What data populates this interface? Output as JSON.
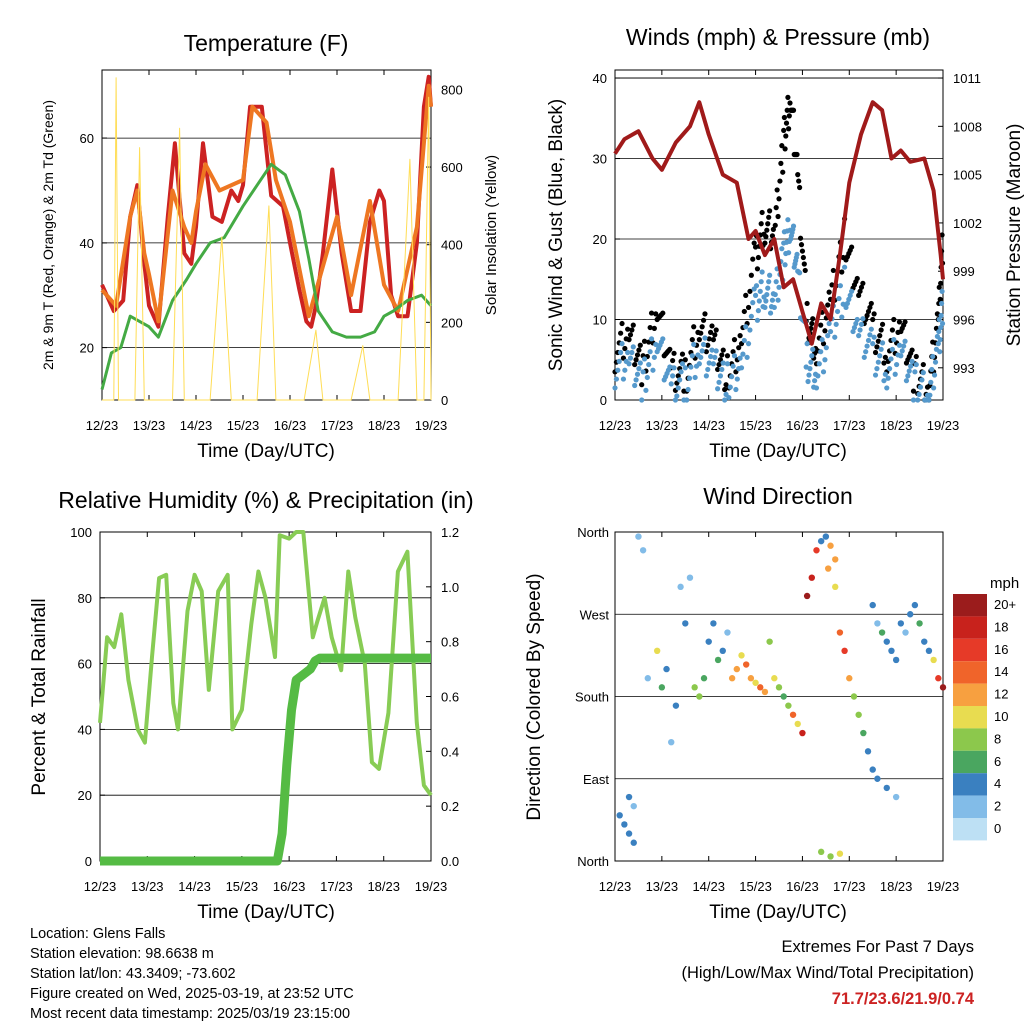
{
  "footer": {
    "location": "Location: Glens Falls",
    "elevation": "Station elevation: 98.6638 m",
    "latlon": "Station lat/lon: 43.3409; -73.602",
    "created": "Figure created on Wed, 2025-03-19, at 23:52 UTC",
    "latest": "Most recent data timestamp: 2025/03/19 23:15:00"
  },
  "extremes": {
    "line1": "Extremes For Past 7 Days",
    "line2": "(High/Low/Max Wind/Total Precipitation)",
    "values": "71.7/23.6/21.9/0.74"
  },
  "colors": {
    "temp_red": "#cc2222",
    "temp_orange": "#ee7722",
    "dewpoint_green": "#44aa44",
    "insolation_yellow": "#ffdd55",
    "wind_blue": "#5599cc",
    "gust_black": "#000000",
    "pressure_maroon": "#a01a1a",
    "rh_lightgreen": "#88cc55",
    "precip_green": "#55bb44"
  },
  "chart_data": [
    {
      "id": "temperature",
      "type": "line",
      "title": "Temperature (F)",
      "xlabel": "Time (Day/UTC)",
      "ylabel": "2m & 9m T (Red, Orange) & 2m Td (Green)",
      "y2label": "Solar Insolation (Yellow)",
      "xticks": [
        "12/23",
        "13/23",
        "14/23",
        "15/23",
        "16/23",
        "17/23",
        "18/23",
        "19/23"
      ],
      "xlim": [
        0,
        7
      ],
      "ylim": [
        10,
        73
      ],
      "yticks": [
        20,
        40,
        60
      ],
      "y2lim": [
        0,
        850
      ],
      "y2ticks": [
        0,
        200,
        400,
        600,
        800
      ],
      "series": [
        {
          "name": "2m T",
          "axis": "left",
          "color": "#cc2222",
          "x": [
            0,
            0.1,
            0.25,
            0.45,
            0.6,
            0.75,
            0.9,
            1.0,
            1.2,
            1.4,
            1.55,
            1.75,
            1.9,
            2.0,
            2.15,
            2.35,
            2.55,
            2.75,
            2.9,
            3.0,
            3.15,
            3.4,
            3.6,
            3.85,
            4.0,
            4.2,
            4.35,
            4.45,
            4.55,
            4.7,
            4.9,
            5.1,
            5.3,
            5.5,
            5.7,
            5.9,
            6.0,
            6.15,
            6.3,
            6.5,
            6.7,
            6.85,
            6.95,
            7.0
          ],
          "y": [
            32,
            30,
            27,
            29,
            45,
            51,
            36,
            28,
            24,
            45,
            59,
            38,
            36,
            43,
            59,
            45,
            44,
            50,
            48,
            51,
            66,
            66,
            49,
            47,
            40,
            31,
            25,
            24,
            28,
            38,
            54,
            38,
            27,
            27,
            44,
            50,
            48,
            30,
            26,
            26,
            40,
            66,
            71.7,
            66
          ]
        },
        {
          "name": "9m T",
          "axis": "left",
          "color": "#ee7722",
          "x": [
            0,
            0.3,
            0.6,
            0.75,
            0.9,
            1.0,
            1.2,
            1.5,
            1.75,
            1.9,
            2.0,
            2.2,
            2.5,
            3.0,
            3.2,
            3.5,
            3.7,
            4.0,
            4.4,
            5.0,
            5.3,
            5.7,
            6.0,
            6.3,
            6.7,
            6.95,
            7.0
          ],
          "y": [
            31,
            28,
            45,
            50,
            38,
            34,
            25,
            50,
            43,
            40,
            46,
            55,
            50,
            52,
            66,
            63,
            52,
            44,
            26,
            45,
            30,
            48,
            32,
            27,
            43,
            70,
            66
          ]
        },
        {
          "name": "2m Td",
          "axis": "left",
          "color": "#44aa44",
          "x": [
            0,
            0.2,
            0.4,
            0.6,
            0.8,
            1.0,
            1.2,
            1.5,
            1.8,
            2.0,
            2.3,
            2.6,
            3.0,
            3.3,
            3.6,
            3.9,
            4.2,
            4.4,
            4.6,
            4.9,
            5.2,
            5.5,
            5.8,
            6.0,
            6.2,
            6.5,
            6.8,
            7.0
          ],
          "y": [
            12,
            19,
            20,
            26,
            25,
            24,
            22,
            29,
            33,
            36,
            40,
            41,
            47,
            51,
            55,
            53,
            46,
            37,
            27,
            23,
            22,
            22,
            23,
            26,
            27,
            29,
            30,
            28
          ]
        },
        {
          "name": "Solar Insolation",
          "axis": "right",
          "color": "#ffdd55",
          "x": [
            0,
            0.1,
            0.25,
            0.3,
            0.35,
            0.45,
            0.5,
            0.7,
            0.8,
            0.9,
            1.1,
            1.3,
            1.5,
            1.65,
            1.75,
            2.1,
            2.3,
            2.55,
            2.75,
            2.9,
            3.1,
            3.3,
            3.55,
            3.7,
            3.8,
            4.1,
            4.3,
            4.55,
            4.7,
            4.85,
            5.1,
            5.3,
            5.55,
            5.7,
            5.85,
            6.1,
            6.3,
            6.55,
            6.7,
            6.85,
            6.95,
            7.0
          ],
          "y": [
            0,
            0,
            0,
            830,
            0,
            0,
            0,
            0,
            650,
            0,
            0,
            0,
            0,
            700,
            0,
            0,
            0,
            420,
            0,
            0,
            0,
            0,
            500,
            0,
            0,
            0,
            0,
            180,
            0,
            0,
            0,
            0,
            140,
            0,
            0,
            0,
            0,
            620,
            0,
            0,
            780,
            0
          ]
        }
      ]
    },
    {
      "id": "winds",
      "type": "scatter",
      "title": "Winds (mph) & Pressure (mb)",
      "xlabel": "Time (Day/UTC)",
      "ylabel": "Sonic Wind & Gust (Blue, Black)",
      "y2label": "Station Pressure (Maroon)",
      "xticks": [
        "12/23",
        "13/23",
        "14/23",
        "15/23",
        "16/23",
        "17/23",
        "18/23",
        "19/23"
      ],
      "xlim": [
        0,
        7
      ],
      "ylim": [
        0,
        41
      ],
      "yticks": [
        0,
        10,
        20,
        30,
        40
      ],
      "y2lim": [
        991,
        1011.5
      ],
      "y2ticks": [
        993,
        996,
        999,
        1002,
        1005,
        1008,
        1011
      ],
      "series": [
        {
          "name": "Gust",
          "axis": "left",
          "color": "#000000",
          "x": [
            0,
            0.3,
            0.6,
            0.9,
            1.2,
            1.5,
            1.8,
            2.1,
            2.4,
            2.7,
            3.0,
            3.2,
            3.4,
            3.6,
            3.75,
            3.9,
            4.1,
            4.3,
            4.6,
            4.9,
            5.2,
            5.5,
            5.8,
            6.1,
            6.4,
            6.7,
            6.9,
            7.0
          ],
          "y": [
            6,
            8,
            4,
            12,
            4,
            3,
            9,
            7,
            3,
            8,
            18,
            22,
            20,
            32,
            38,
            28,
            10,
            6,
            12,
            20,
            14,
            9,
            6,
            9,
            3,
            2,
            10,
            20
          ]
        },
        {
          "name": "Wind",
          "axis": "left",
          "color": "#5599cc",
          "x": [
            0,
            0.3,
            0.6,
            0.9,
            1.2,
            1.5,
            1.8,
            2.1,
            2.4,
            2.7,
            3.0,
            3.2,
            3.4,
            3.6,
            3.75,
            3.9,
            4.1,
            4.3,
            4.6,
            4.9,
            5.2,
            5.5,
            5.8,
            6.1,
            6.4,
            6.7,
            6.9,
            7.0
          ],
          "y": [
            4,
            5,
            2,
            8,
            2,
            2,
            6,
            4,
            2,
            5,
            12,
            14,
            12,
            18,
            22,
            16,
            5,
            3,
            8,
            14,
            9,
            6,
            4,
            6,
            2,
            1,
            7,
            12
          ]
        },
        {
          "name": "Pressure",
          "axis": "right",
          "color": "#a01a1a",
          "x": [
            0,
            0.2,
            0.5,
            0.8,
            1.0,
            1.3,
            1.6,
            1.8,
            2.0,
            2.3,
            2.6,
            2.85,
            3.0,
            3.2,
            3.4,
            3.6,
            3.8,
            4.0,
            4.2,
            4.4,
            4.6,
            4.8,
            5.0,
            5.25,
            5.5,
            5.7,
            5.9,
            6.1,
            6.3,
            6.6,
            6.8,
            6.95,
            7.0
          ],
          "y": [
            1006.3,
            1007.2,
            1007.7,
            1006,
            1005.3,
            1007,
            1008,
            1009.5,
            1007.5,
            1005,
            1004.5,
            1001,
            1001.5,
            1000,
            1001,
            998,
            998.5,
            996.5,
            994.5,
            997,
            996,
            1000,
            1004.5,
            1007.5,
            1009.5,
            1009,
            1006,
            1006.5,
            1005.8,
            1006,
            1004,
            1000,
            998.5
          ]
        }
      ]
    },
    {
      "id": "humidity",
      "type": "line",
      "title": "Relative Humidity (%) & Precipitation (in)",
      "xlabel": "Time (Day/UTC)",
      "ylabel": "Percent & Total Rainfall",
      "xticks": [
        "12/23",
        "13/23",
        "14/23",
        "15/23",
        "16/23",
        "17/23",
        "18/23",
        "19/23"
      ],
      "xlim": [
        0,
        7
      ],
      "ylim": [
        0,
        100
      ],
      "yticks": [
        0,
        20,
        40,
        60,
        80,
        100
      ],
      "y2lim": [
        0,
        1.2
      ],
      "y2ticks": [
        "0.0",
        "0.2",
        "0.4",
        "0.6",
        "0.8",
        "1.0",
        "1.2"
      ],
      "series": [
        {
          "name": "RH",
          "axis": "left",
          "color": "#88cc55",
          "x": [
            0,
            0.15,
            0.3,
            0.45,
            0.6,
            0.8,
            0.95,
            1.1,
            1.25,
            1.4,
            1.55,
            1.65,
            1.85,
            2.0,
            2.15,
            2.3,
            2.5,
            2.7,
            2.8,
            3.0,
            3.2,
            3.35,
            3.5,
            3.7,
            3.8,
            4.0,
            4.15,
            4.3,
            4.5,
            4.6,
            4.75,
            4.9,
            5.1,
            5.25,
            5.4,
            5.6,
            5.75,
            5.9,
            6.1,
            6.3,
            6.5,
            6.7,
            6.85,
            7.0
          ],
          "y": [
            42,
            68,
            65,
            75,
            55,
            40,
            36,
            62,
            86,
            87,
            48,
            40,
            76,
            87,
            82,
            52,
            82,
            87,
            40,
            46,
            72,
            88,
            80,
            62,
            99,
            98,
            100,
            100,
            68,
            73,
            80,
            68,
            58,
            88,
            74,
            60,
            30,
            28,
            45,
            88,
            94,
            42,
            23,
            20
          ]
        },
        {
          "name": "Total Precipitation",
          "axis": "right",
          "color": "#55bb44",
          "x": [
            0,
            3.75,
            3.85,
            3.95,
            4.05,
            4.15,
            4.3,
            4.45,
            4.55,
            4.65,
            5.0,
            6.0,
            7.0
          ],
          "y": [
            0,
            0,
            0.1,
            0.35,
            0.55,
            0.66,
            0.68,
            0.7,
            0.73,
            0.74,
            0.74,
            0.74,
            0.74
          ]
        }
      ]
    },
    {
      "id": "wind_direction",
      "type": "scatter",
      "title": "Wind Direction",
      "xlabel": "Time (Day/UTC)",
      "ylabel": "Direction (Colored By Speed)",
      "xticks": [
        "12/23",
        "13/23",
        "14/23",
        "15/23",
        "16/23",
        "17/23",
        "18/23",
        "19/23"
      ],
      "xlim": [
        0,
        7
      ],
      "ylim": [
        0,
        360
      ],
      "ytick_labels": [
        "North",
        "East",
        "South",
        "West",
        "North"
      ],
      "legend": {
        "title": "mph",
        "labels": [
          "20+",
          "18",
          "16",
          "14",
          "12",
          "10",
          "8",
          "6",
          "4",
          "2",
          "0"
        ],
        "colors": [
          "#9b1c1c",
          "#c8221c",
          "#e63a28",
          "#f0642a",
          "#f7a040",
          "#e8dc50",
          "#8cc84c",
          "#4aa660",
          "#3a80c0",
          "#82bce8",
          "#bde0f4"
        ]
      },
      "points_x": [
        0.1,
        0.2,
        0.3,
        0.4,
        0.5,
        0.6,
        0.3,
        0.4,
        0.7,
        0.9,
        1.0,
        1.1,
        1.2,
        1.3,
        1.4,
        1.5,
        1.6,
        1.7,
        1.8,
        1.9,
        2.0,
        2.1,
        2.2,
        2.3,
        2.4,
        2.5,
        2.6,
        2.7,
        2.8,
        2.9,
        3.0,
        3.1,
        3.2,
        3.3,
        3.4,
        3.5,
        3.6,
        3.7,
        3.8,
        3.9,
        4.0,
        4.1,
        4.2,
        4.3,
        4.4,
        4.5,
        4.6,
        4.7,
        4.8,
        4.9,
        5.0,
        5.1,
        5.2,
        5.3,
        5.4,
        5.5,
        5.6,
        5.7,
        5.8,
        5.9,
        6.0,
        6.1,
        6.2,
        6.3,
        6.4,
        6.5,
        6.6,
        6.7,
        6.8,
        6.9,
        7.0,
        4.4,
        4.6,
        4.8,
        4.55,
        4.7,
        5.5,
        5.6,
        5.8,
        6.0
      ],
      "points_y": [
        50,
        40,
        30,
        60,
        355,
        340,
        70,
        20,
        200,
        230,
        190,
        210,
        130,
        170,
        300,
        260,
        310,
        190,
        180,
        200,
        240,
        260,
        220,
        230,
        250,
        200,
        210,
        225,
        215,
        200,
        195,
        190,
        185,
        240,
        200,
        190,
        180,
        170,
        160,
        150,
        140,
        290,
        310,
        340,
        350,
        355,
        345,
        300,
        250,
        230,
        200,
        180,
        160,
        140,
        120,
        280,
        260,
        250,
        240,
        230,
        220,
        260,
        250,
        270,
        280,
        260,
        240,
        230,
        220,
        200,
        190,
        10,
        5,
        8,
        320,
        330,
        100,
        90,
        80,
        70
      ],
      "points_speed": [
        3,
        4,
        3,
        2,
        1,
        1,
        3,
        4,
        2,
        9,
        6,
        3,
        2,
        4,
        1,
        3,
        2,
        7,
        8,
        5,
        4,
        3,
        6,
        3,
        2,
        12,
        11,
        10,
        13,
        12,
        9,
        14,
        11,
        8,
        10,
        7,
        6,
        8,
        13,
        9,
        18,
        20,
        17,
        16,
        4,
        3,
        12,
        9,
        14,
        16,
        11,
        8,
        7,
        6,
        4,
        3,
        2,
        5,
        4,
        3,
        4,
        3,
        2,
        4,
        3,
        5,
        4,
        3,
        9,
        16,
        19,
        8,
        7,
        10,
        12,
        11,
        3,
        4,
        3,
        2
      ]
    }
  ]
}
